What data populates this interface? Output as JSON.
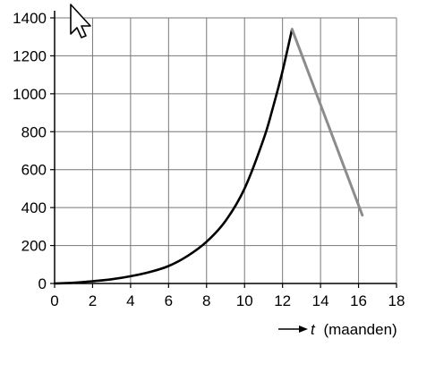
{
  "chart_data": {
    "type": "line",
    "title": "",
    "xlabel": {
      "var": "t",
      "unit": "(maanden)"
    },
    "ylabel": "",
    "xlim": [
      0,
      18
    ],
    "ylim": [
      0,
      1400
    ],
    "x_ticks": [
      0,
      2,
      4,
      6,
      8,
      10,
      12,
      14,
      16,
      18
    ],
    "y_ticks": [
      0,
      200,
      400,
      600,
      800,
      1000,
      1200,
      1400
    ],
    "x_tick_labels": [
      "0",
      "2",
      "4",
      "6",
      "8",
      "10",
      "12",
      "14",
      "16",
      "18"
    ],
    "y_tick_labels": [
      "0",
      "200",
      "400",
      "600",
      "800",
      "1000",
      "1200",
      "1400"
    ],
    "grid": true,
    "legend": "none",
    "series": [
      {
        "color": "#000000",
        "style": "exponential curve",
        "x": [
          0,
          1,
          2,
          3,
          4,
          5,
          6,
          7,
          8,
          9,
          10,
          11,
          11.5,
          12,
          12.5
        ],
        "y": [
          0,
          4,
          12,
          22,
          38,
          60,
          92,
          145,
          220,
          330,
          500,
          760,
          930,
          1120,
          1340
        ]
      },
      {
        "color": "#8c8c8c",
        "style": "straight line",
        "x": [
          12.5,
          16.2
        ],
        "y": [
          1340,
          360
        ]
      }
    ]
  }
}
